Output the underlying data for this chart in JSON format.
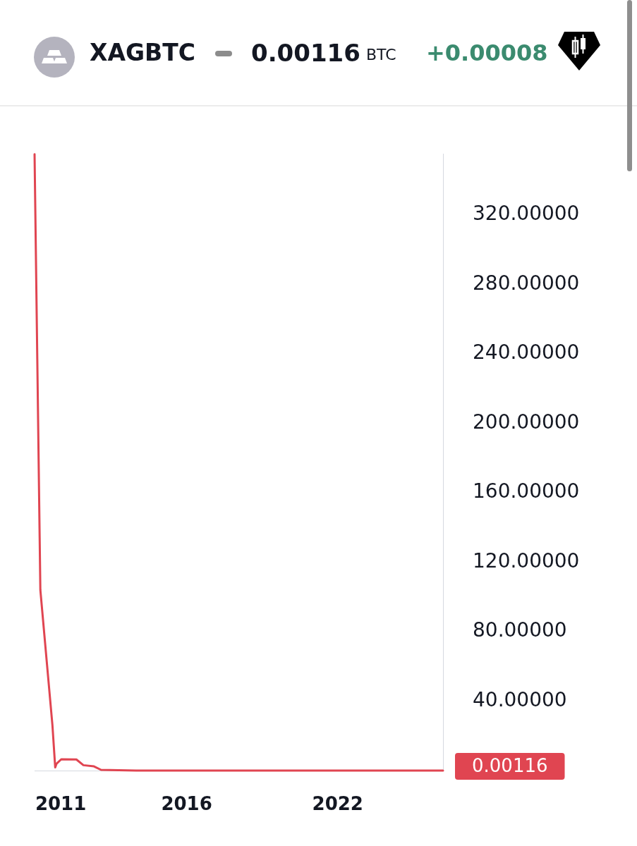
{
  "chart_data": {
    "type": "line",
    "title": "XAGBTC",
    "annotations": [
      "0.00116",
      "BTC",
      "+0.00008"
    ],
    "x": [
      2009.96,
      2010.19,
      2010.67,
      2010.78,
      2010.83,
      2011.02,
      2011.62,
      2011.9,
      2012.32,
      2012.6,
      2014,
      2018,
      2022,
      2026.18
    ],
    "values": [
      355,
      104,
      26,
      1.8,
      3.9,
      6.5,
      6.4,
      3.1,
      2.4,
      0.4,
      0,
      0,
      0,
      0.00116
    ],
    "value_labels": [
      null,
      null,
      null,
      null,
      null,
      null,
      null,
      null,
      null,
      null,
      null,
      null,
      null,
      "0.00116"
    ],
    "color": "#e04551",
    "xlim": [
      2009.96,
      2026.18
    ],
    "xticks": [
      2011,
      2016,
      2022
    ],
    "ylim": [
      0,
      355
    ],
    "yticks": [
      {
        "value": 40,
        "label": "40.00000"
      },
      {
        "value": 80,
        "label": "80.00000"
      },
      {
        "value": 120,
        "label": "120.00000"
      },
      {
        "value": 160,
        "label": "160.00000"
      },
      {
        "value": 200,
        "label": "200.00000"
      },
      {
        "value": 240,
        "label": "240.00000"
      },
      {
        "value": 280,
        "label": "280.00000"
      },
      {
        "value": 320,
        "label": "320.00000"
      }
    ],
    "grid": false,
    "legend": false,
    "marker": "none"
  }
}
